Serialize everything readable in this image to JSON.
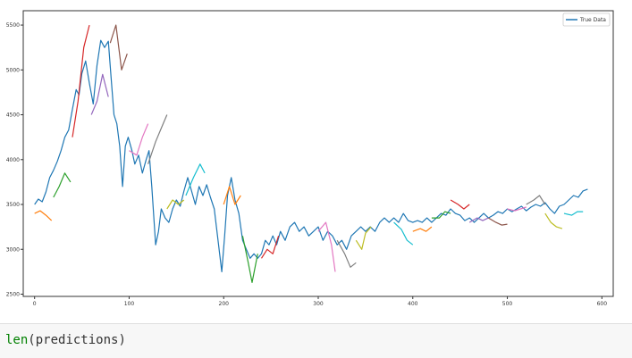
{
  "chart_data": {
    "type": "line",
    "title": "",
    "xlabel": "",
    "ylabel": "",
    "xlim": [
      -12,
      612
    ],
    "ylim": [
      2475,
      5660
    ],
    "xticks": [
      0,
      100,
      200,
      300,
      400,
      500,
      600
    ],
    "yticks": [
      2500,
      3000,
      3500,
      4000,
      4500,
      5000,
      5500
    ],
    "legend": {
      "position": "top-right",
      "entries": [
        "True Data"
      ]
    },
    "grid": false,
    "true_data": {
      "name": "True Data",
      "color": "#1f77b4",
      "points": [
        [
          0,
          3500
        ],
        [
          4,
          3560
        ],
        [
          8,
          3530
        ],
        [
          12,
          3640
        ],
        [
          16,
          3800
        ],
        [
          20,
          3880
        ],
        [
          24,
          3980
        ],
        [
          28,
          4100
        ],
        [
          32,
          4250
        ],
        [
          36,
          4330
        ],
        [
          40,
          4560
        ],
        [
          44,
          4780
        ],
        [
          47,
          4720
        ],
        [
          50,
          4960
        ],
        [
          54,
          5100
        ],
        [
          58,
          4850
        ],
        [
          62,
          4620
        ],
        [
          66,
          5050
        ],
        [
          70,
          5330
        ],
        [
          74,
          5250
        ],
        [
          78,
          5320
        ],
        [
          81,
          4900
        ],
        [
          84,
          4500
        ],
        [
          87,
          4400
        ],
        [
          90,
          4150
        ],
        [
          93,
          3700
        ],
        [
          96,
          4150
        ],
        [
          99,
          4250
        ],
        [
          103,
          4100
        ],
        [
          106,
          3950
        ],
        [
          110,
          4050
        ],
        [
          114,
          3850
        ],
        [
          118,
          4000
        ],
        [
          121,
          4100
        ],
        [
          124,
          3700
        ],
        [
          128,
          3050
        ],
        [
          131,
          3200
        ],
        [
          134,
          3450
        ],
        [
          138,
          3350
        ],
        [
          142,
          3300
        ],
        [
          146,
          3450
        ],
        [
          150,
          3550
        ],
        [
          154,
          3480
        ],
        [
          158,
          3650
        ],
        [
          162,
          3800
        ],
        [
          166,
          3650
        ],
        [
          170,
          3500
        ],
        [
          174,
          3700
        ],
        [
          178,
          3600
        ],
        [
          182,
          3720
        ],
        [
          186,
          3580
        ],
        [
          190,
          3450
        ],
        [
          194,
          3100
        ],
        [
          198,
          2750
        ],
        [
          201,
          3150
        ],
        [
          204,
          3600
        ],
        [
          208,
          3800
        ],
        [
          212,
          3550
        ],
        [
          216,
          3400
        ],
        [
          220,
          3100
        ],
        [
          224,
          3000
        ],
        [
          228,
          2900
        ],
        [
          232,
          2950
        ],
        [
          236,
          2900
        ],
        [
          240,
          2950
        ],
        [
          244,
          3100
        ],
        [
          248,
          3050
        ],
        [
          252,
          3150
        ],
        [
          256,
          3050
        ],
        [
          260,
          3200
        ],
        [
          265,
          3100
        ],
        [
          270,
          3250
        ],
        [
          275,
          3300
        ],
        [
          280,
          3200
        ],
        [
          285,
          3250
        ],
        [
          290,
          3150
        ],
        [
          295,
          3200
        ],
        [
          300,
          3250
        ],
        [
          305,
          3100
        ],
        [
          310,
          3200
        ],
        [
          315,
          3150
        ],
        [
          320,
          3050
        ],
        [
          325,
          3100
        ],
        [
          330,
          3000
        ],
        [
          335,
          3150
        ],
        [
          340,
          3200
        ],
        [
          345,
          3250
        ],
        [
          350,
          3200
        ],
        [
          355,
          3250
        ],
        [
          360,
          3200
        ],
        [
          365,
          3300
        ],
        [
          370,
          3350
        ],
        [
          375,
          3300
        ],
        [
          380,
          3350
        ],
        [
          385,
          3300
        ],
        [
          390,
          3400
        ],
        [
          395,
          3320
        ],
        [
          400,
          3300
        ],
        [
          405,
          3320
        ],
        [
          410,
          3300
        ],
        [
          415,
          3350
        ],
        [
          420,
          3300
        ],
        [
          425,
          3350
        ],
        [
          430,
          3400
        ],
        [
          435,
          3380
        ],
        [
          440,
          3450
        ],
        [
          445,
          3400
        ],
        [
          450,
          3380
        ],
        [
          455,
          3320
        ],
        [
          460,
          3350
        ],
        [
          465,
          3300
        ],
        [
          470,
          3350
        ],
        [
          475,
          3400
        ],
        [
          480,
          3350
        ],
        [
          485,
          3380
        ],
        [
          490,
          3420
        ],
        [
          495,
          3400
        ],
        [
          500,
          3450
        ],
        [
          505,
          3420
        ],
        [
          510,
          3450
        ],
        [
          515,
          3480
        ],
        [
          520,
          3430
        ],
        [
          525,
          3470
        ],
        [
          530,
          3500
        ],
        [
          535,
          3480
        ],
        [
          540,
          3520
        ],
        [
          545,
          3450
        ],
        [
          550,
          3400
        ],
        [
          555,
          3480
        ],
        [
          560,
          3500
        ],
        [
          565,
          3550
        ],
        [
          570,
          3600
        ],
        [
          575,
          3580
        ],
        [
          580,
          3650
        ],
        [
          585,
          3670
        ]
      ]
    },
    "prediction_segments": [
      {
        "color": "#ff7f0e",
        "points": [
          [
            0,
            3400
          ],
          [
            6,
            3430
          ],
          [
            12,
            3380
          ],
          [
            18,
            3320
          ]
        ]
      },
      {
        "color": "#2ca02c",
        "points": [
          [
            20,
            3580
          ],
          [
            26,
            3700
          ],
          [
            32,
            3850
          ],
          [
            38,
            3750
          ]
        ]
      },
      {
        "color": "#d62728",
        "points": [
          [
            40,
            4250
          ],
          [
            46,
            4650
          ],
          [
            52,
            5250
          ],
          [
            58,
            5500
          ]
        ]
      },
      {
        "color": "#9467bd",
        "points": [
          [
            60,
            4500
          ],
          [
            66,
            4650
          ],
          [
            72,
            4950
          ],
          [
            78,
            4700
          ]
        ]
      },
      {
        "color": "#8c564b",
        "points": [
          [
            80,
            5300
          ],
          [
            86,
            5500
          ],
          [
            92,
            5000
          ],
          [
            98,
            5180
          ]
        ]
      },
      {
        "color": "#e377c2",
        "points": [
          [
            100,
            4100
          ],
          [
            108,
            4050
          ],
          [
            114,
            4250
          ],
          [
            120,
            4400
          ]
        ]
      },
      {
        "color": "#7f7f7f",
        "points": [
          [
            120,
            3950
          ],
          [
            128,
            4200
          ],
          [
            134,
            4350
          ],
          [
            140,
            4500
          ]
        ]
      },
      {
        "color": "#bcbd22",
        "points": [
          [
            140,
            3450
          ],
          [
            146,
            3550
          ],
          [
            152,
            3500
          ],
          [
            158,
            3550
          ]
        ]
      },
      {
        "color": "#17becf",
        "points": [
          [
            160,
            3600
          ],
          [
            168,
            3800
          ],
          [
            175,
            3950
          ],
          [
            180,
            3850
          ]
        ]
      },
      {
        "color": "#ff7f0e",
        "points": [
          [
            200,
            3500
          ],
          [
            206,
            3700
          ],
          [
            212,
            3500
          ],
          [
            218,
            3600
          ]
        ]
      },
      {
        "color": "#2ca02c",
        "points": [
          [
            220,
            3150
          ],
          [
            226,
            2850
          ],
          [
            230,
            2630
          ],
          [
            236,
            2950
          ]
        ]
      },
      {
        "color": "#d62728",
        "points": [
          [
            240,
            2900
          ],
          [
            246,
            3000
          ],
          [
            252,
            2950
          ],
          [
            258,
            3150
          ]
        ]
      },
      {
        "color": "#e377c2",
        "points": [
          [
            300,
            3200
          ],
          [
            308,
            3300
          ],
          [
            314,
            3050
          ],
          [
            318,
            2750
          ]
        ]
      },
      {
        "color": "#7f7f7f",
        "points": [
          [
            320,
            3100
          ],
          [
            328,
            2950
          ],
          [
            334,
            2800
          ],
          [
            340,
            2850
          ]
        ]
      },
      {
        "color": "#bcbd22",
        "points": [
          [
            340,
            3100
          ],
          [
            346,
            3000
          ],
          [
            350,
            3180
          ],
          [
            356,
            3250
          ]
        ]
      },
      {
        "color": "#17becf",
        "points": [
          [
            380,
            3300
          ],
          [
            388,
            3220
          ],
          [
            394,
            3100
          ],
          [
            400,
            3050
          ]
        ]
      },
      {
        "color": "#ff7f0e",
        "points": [
          [
            400,
            3200
          ],
          [
            408,
            3230
          ],
          [
            414,
            3200
          ],
          [
            420,
            3250
          ]
        ]
      },
      {
        "color": "#2ca02c",
        "points": [
          [
            420,
            3350
          ],
          [
            428,
            3350
          ],
          [
            434,
            3420
          ],
          [
            440,
            3400
          ]
        ]
      },
      {
        "color": "#d62728",
        "points": [
          [
            440,
            3550
          ],
          [
            448,
            3500
          ],
          [
            454,
            3450
          ],
          [
            460,
            3500
          ]
        ]
      },
      {
        "color": "#9467bd",
        "points": [
          [
            460,
            3300
          ],
          [
            468,
            3350
          ],
          [
            474,
            3320
          ],
          [
            480,
            3350
          ]
        ]
      },
      {
        "color": "#8c564b",
        "points": [
          [
            480,
            3350
          ],
          [
            488,
            3300
          ],
          [
            494,
            3270
          ],
          [
            500,
            3280
          ]
        ]
      },
      {
        "color": "#e377c2",
        "points": [
          [
            500,
            3450
          ],
          [
            508,
            3430
          ],
          [
            514,
            3450
          ],
          [
            520,
            3470
          ]
        ]
      },
      {
        "color": "#7f7f7f",
        "points": [
          [
            520,
            3500
          ],
          [
            528,
            3550
          ],
          [
            534,
            3600
          ],
          [
            540,
            3500
          ]
        ]
      },
      {
        "color": "#bcbd22",
        "points": [
          [
            540,
            3400
          ],
          [
            546,
            3300
          ],
          [
            552,
            3250
          ],
          [
            558,
            3230
          ]
        ]
      },
      {
        "color": "#17becf",
        "points": [
          [
            560,
            3400
          ],
          [
            568,
            3380
          ],
          [
            574,
            3420
          ],
          [
            580,
            3420
          ]
        ]
      }
    ]
  },
  "code_cell": {
    "builtin": "len",
    "rest": "(predictions)"
  }
}
